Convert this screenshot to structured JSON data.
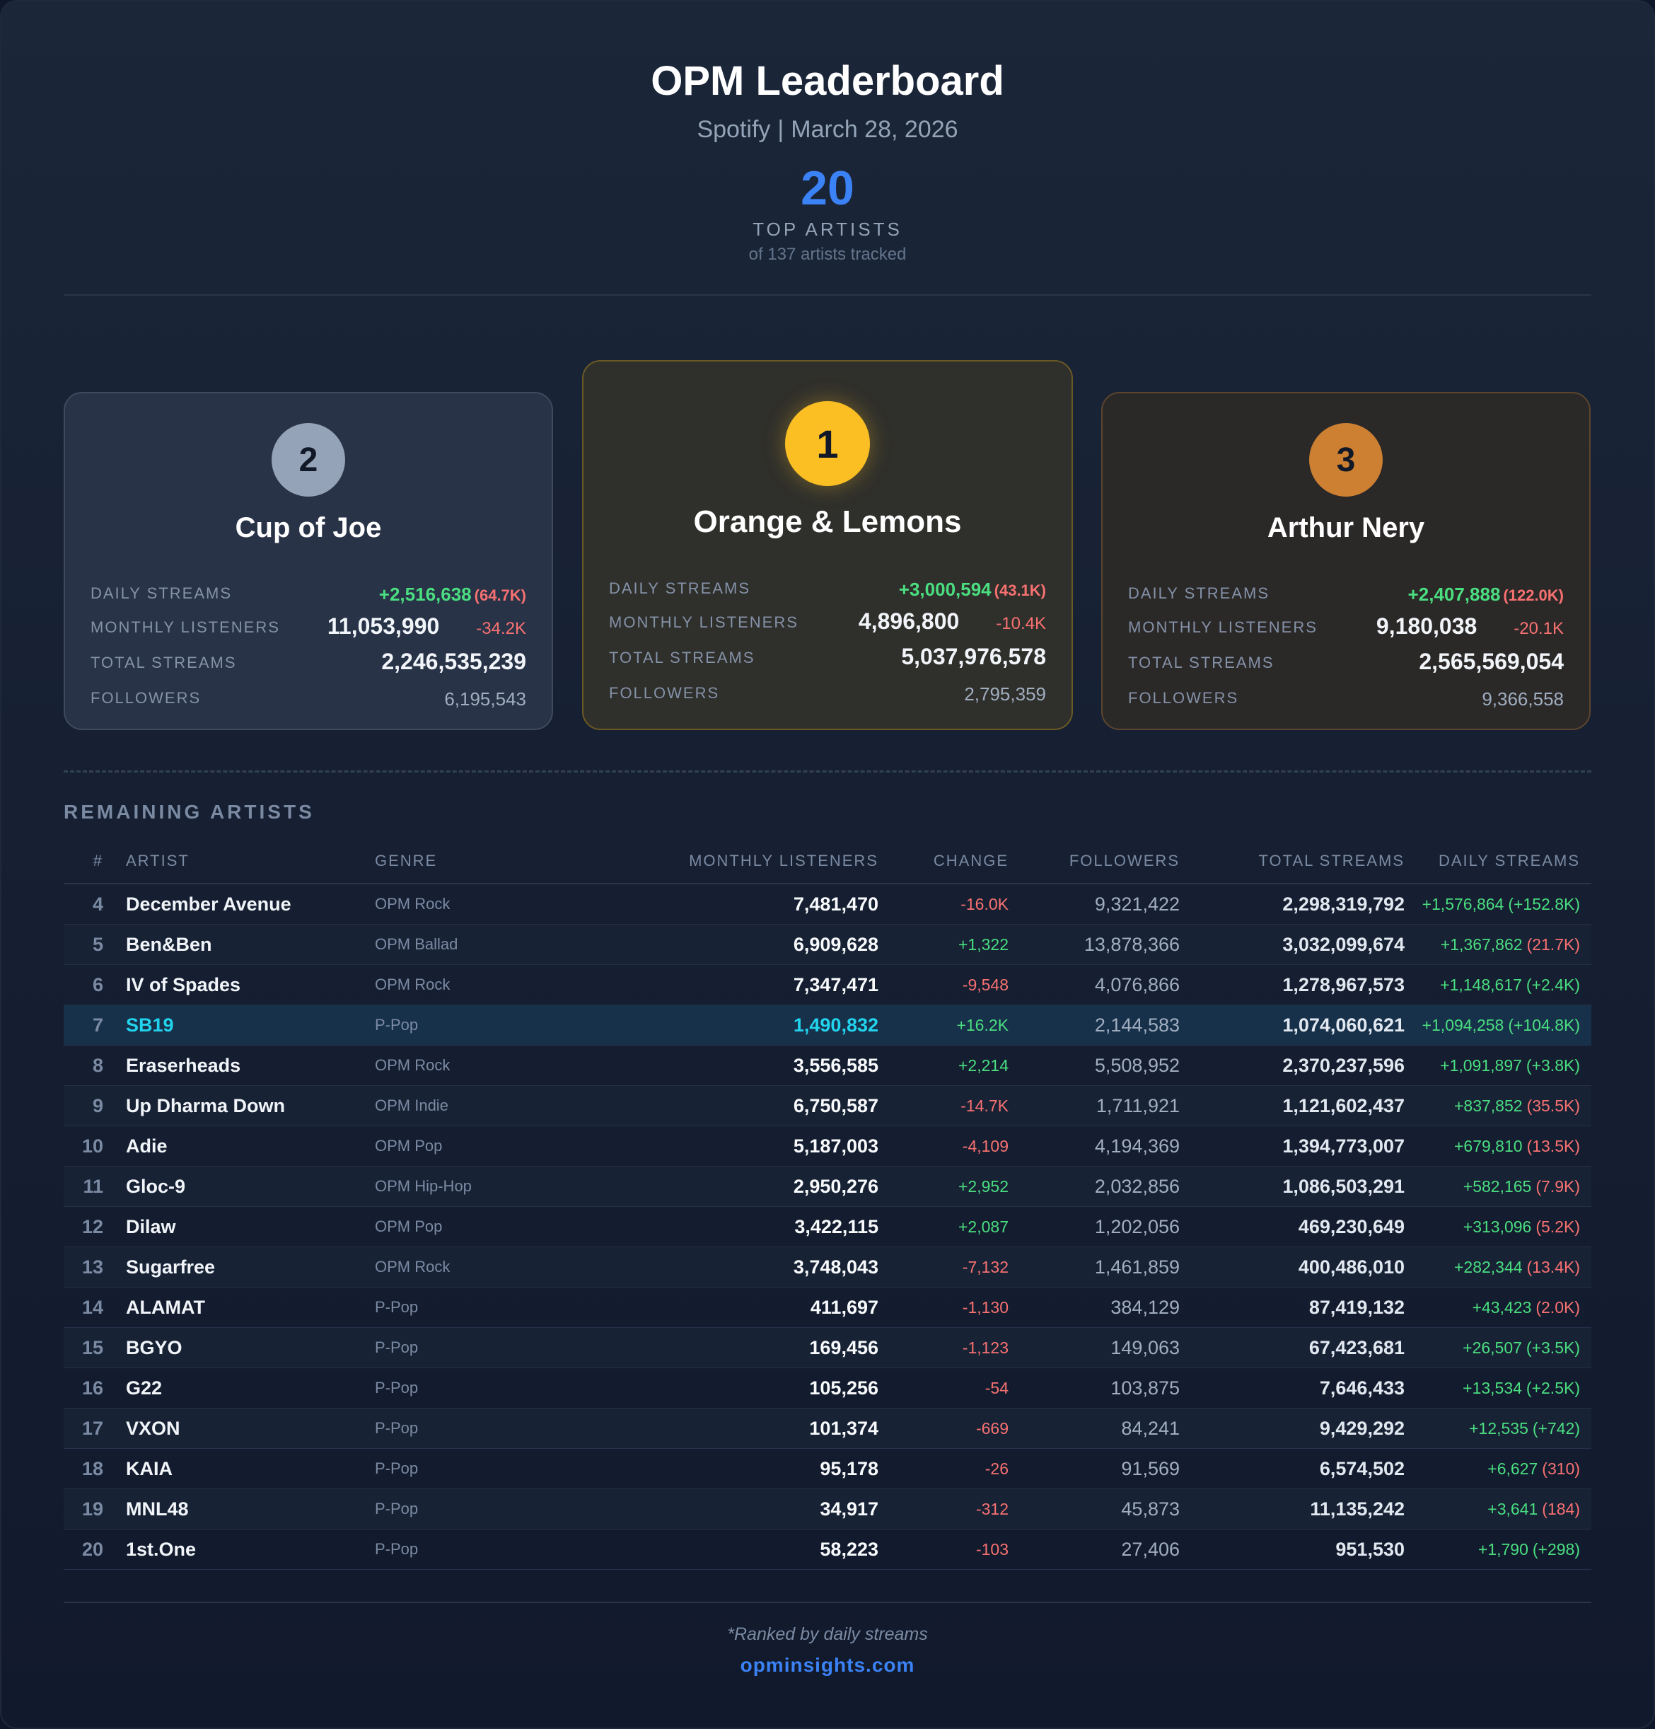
{
  "header": {
    "title": "OPM Leaderboard",
    "platform": "Spotify",
    "separator": "|",
    "date": "March 28, 2026",
    "count": "20",
    "count_label": "TOP ARTISTS",
    "count_sub": "of 137 artists tracked"
  },
  "labels": {
    "daily_streams": "DAILY STREAMS",
    "monthly_listeners": "MONTHLY LISTENERS",
    "total_streams": "TOTAL STREAMS",
    "followers": "FOLLOWERS"
  },
  "podium": [
    {
      "rank": "1",
      "name": "Orange & Lemons",
      "daily": "+3,000,594",
      "daily_delta": "(43.1K)",
      "monthly": "4,896,800",
      "monthly_change": "-10.4K",
      "total": "5,037,976,578",
      "followers": "2,795,359"
    },
    {
      "rank": "2",
      "name": "Cup of Joe",
      "daily": "+2,516,638",
      "daily_delta": "(64.7K)",
      "monthly": "11,053,990",
      "monthly_change": "-34.2K",
      "total": "2,246,535,239",
      "followers": "6,195,543"
    },
    {
      "rank": "3",
      "name": "Arthur Nery",
      "daily": "+2,407,888",
      "daily_delta": "(122.0K)",
      "monthly": "9,180,038",
      "monthly_change": "-20.1K",
      "total": "2,565,569,054",
      "followers": "9,366,558"
    }
  ],
  "table": {
    "section_title": "REMAINING ARTISTS",
    "columns": {
      "rank": "#",
      "artist": "ARTIST",
      "genre": "GENRE",
      "monthly": "MONTHLY LISTENERS",
      "change": "CHANGE",
      "followers": "FOLLOWERS",
      "total": "TOTAL STREAMS",
      "daily": "DAILY STREAMS"
    },
    "rows": [
      {
        "rank": "4",
        "artist": "December Avenue",
        "genre": "OPM Rock",
        "monthly": "7,481,470",
        "change": "-16.0K",
        "followers": "9,321,422",
        "total": "2,298,319,792",
        "daily": "+1,576,864",
        "daily_delta": "(+152.8K)"
      },
      {
        "rank": "5",
        "artist": "Ben&Ben",
        "genre": "OPM Ballad",
        "monthly": "6,909,628",
        "change": "+1,322",
        "followers": "13,878,366",
        "total": "3,032,099,674",
        "daily": "+1,367,862",
        "daily_delta": "(21.7K)"
      },
      {
        "rank": "6",
        "artist": "IV of Spades",
        "genre": "OPM Rock",
        "monthly": "7,347,471",
        "change": "-9,548",
        "followers": "4,076,866",
        "total": "1,278,967,573",
        "daily": "+1,148,617",
        "daily_delta": "(+2.4K)"
      },
      {
        "rank": "7",
        "artist": "SB19",
        "genre": "P-Pop",
        "monthly": "1,490,832",
        "change": "+16.2K",
        "followers": "2,144,583",
        "total": "1,074,060,621",
        "daily": "+1,094,258",
        "daily_delta": "(+104.8K)",
        "highlight": true
      },
      {
        "rank": "8",
        "artist": "Eraserheads",
        "genre": "OPM Rock",
        "monthly": "3,556,585",
        "change": "+2,214",
        "followers": "5,508,952",
        "total": "2,370,237,596",
        "daily": "+1,091,897",
        "daily_delta": "(+3.8K)"
      },
      {
        "rank": "9",
        "artist": "Up Dharma Down",
        "genre": "OPM Indie",
        "monthly": "6,750,587",
        "change": "-14.7K",
        "followers": "1,711,921",
        "total": "1,121,602,437",
        "daily": "+837,852",
        "daily_delta": "(35.5K)"
      },
      {
        "rank": "10",
        "artist": "Adie",
        "genre": "OPM Pop",
        "monthly": "5,187,003",
        "change": "-4,109",
        "followers": "4,194,369",
        "total": "1,394,773,007",
        "daily": "+679,810",
        "daily_delta": "(13.5K)"
      },
      {
        "rank": "11",
        "artist": "Gloc-9",
        "genre": "OPM Hip-Hop",
        "monthly": "2,950,276",
        "change": "+2,952",
        "followers": "2,032,856",
        "total": "1,086,503,291",
        "daily": "+582,165",
        "daily_delta": "(7.9K)"
      },
      {
        "rank": "12",
        "artist": "Dilaw",
        "genre": "OPM Pop",
        "monthly": "3,422,115",
        "change": "+2,087",
        "followers": "1,202,056",
        "total": "469,230,649",
        "daily": "+313,096",
        "daily_delta": "(5.2K)"
      },
      {
        "rank": "13",
        "artist": "Sugarfree",
        "genre": "OPM Rock",
        "monthly": "3,748,043",
        "change": "-7,132",
        "followers": "1,461,859",
        "total": "400,486,010",
        "daily": "+282,344",
        "daily_delta": "(13.4K)"
      },
      {
        "rank": "14",
        "artist": "ALAMAT",
        "genre": "P-Pop",
        "monthly": "411,697",
        "change": "-1,130",
        "followers": "384,129",
        "total": "87,419,132",
        "daily": "+43,423",
        "daily_delta": "(2.0K)"
      },
      {
        "rank": "15",
        "artist": "BGYO",
        "genre": "P-Pop",
        "monthly": "169,456",
        "change": "-1,123",
        "followers": "149,063",
        "total": "67,423,681",
        "daily": "+26,507",
        "daily_delta": "(+3.5K)"
      },
      {
        "rank": "16",
        "artist": "G22",
        "genre": "P-Pop",
        "monthly": "105,256",
        "change": "-54",
        "followers": "103,875",
        "total": "7,646,433",
        "daily": "+13,534",
        "daily_delta": "(+2.5K)"
      },
      {
        "rank": "17",
        "artist": "VXON",
        "genre": "P-Pop",
        "monthly": "101,374",
        "change": "-669",
        "followers": "84,241",
        "total": "9,429,292",
        "daily": "+12,535",
        "daily_delta": "(+742)"
      },
      {
        "rank": "18",
        "artist": "KAIA",
        "genre": "P-Pop",
        "monthly": "95,178",
        "change": "-26",
        "followers": "91,569",
        "total": "6,574,502",
        "daily": "+6,627",
        "daily_delta": "(310)"
      },
      {
        "rank": "19",
        "artist": "MNL48",
        "genre": "P-Pop",
        "monthly": "34,917",
        "change": "-312",
        "followers": "45,873",
        "total": "11,135,242",
        "daily": "+3,641",
        "daily_delta": "(184)"
      },
      {
        "rank": "20",
        "artist": "1st.One",
        "genre": "P-Pop",
        "monthly": "58,223",
        "change": "-103",
        "followers": "27,406",
        "total": "951,530",
        "daily": "+1,790",
        "daily_delta": "(+298)"
      }
    ]
  },
  "footer": {
    "note": "*Ranked by daily streams",
    "link": "opminsights.com"
  },
  "colors": {
    "accent": "#3b82f6",
    "positive": "#4ade80",
    "negative": "#f87171",
    "gold": "#fbbf24",
    "silver": "#94a3b8",
    "bronze": "#cd7f32",
    "highlight": "#22d3ee"
  }
}
